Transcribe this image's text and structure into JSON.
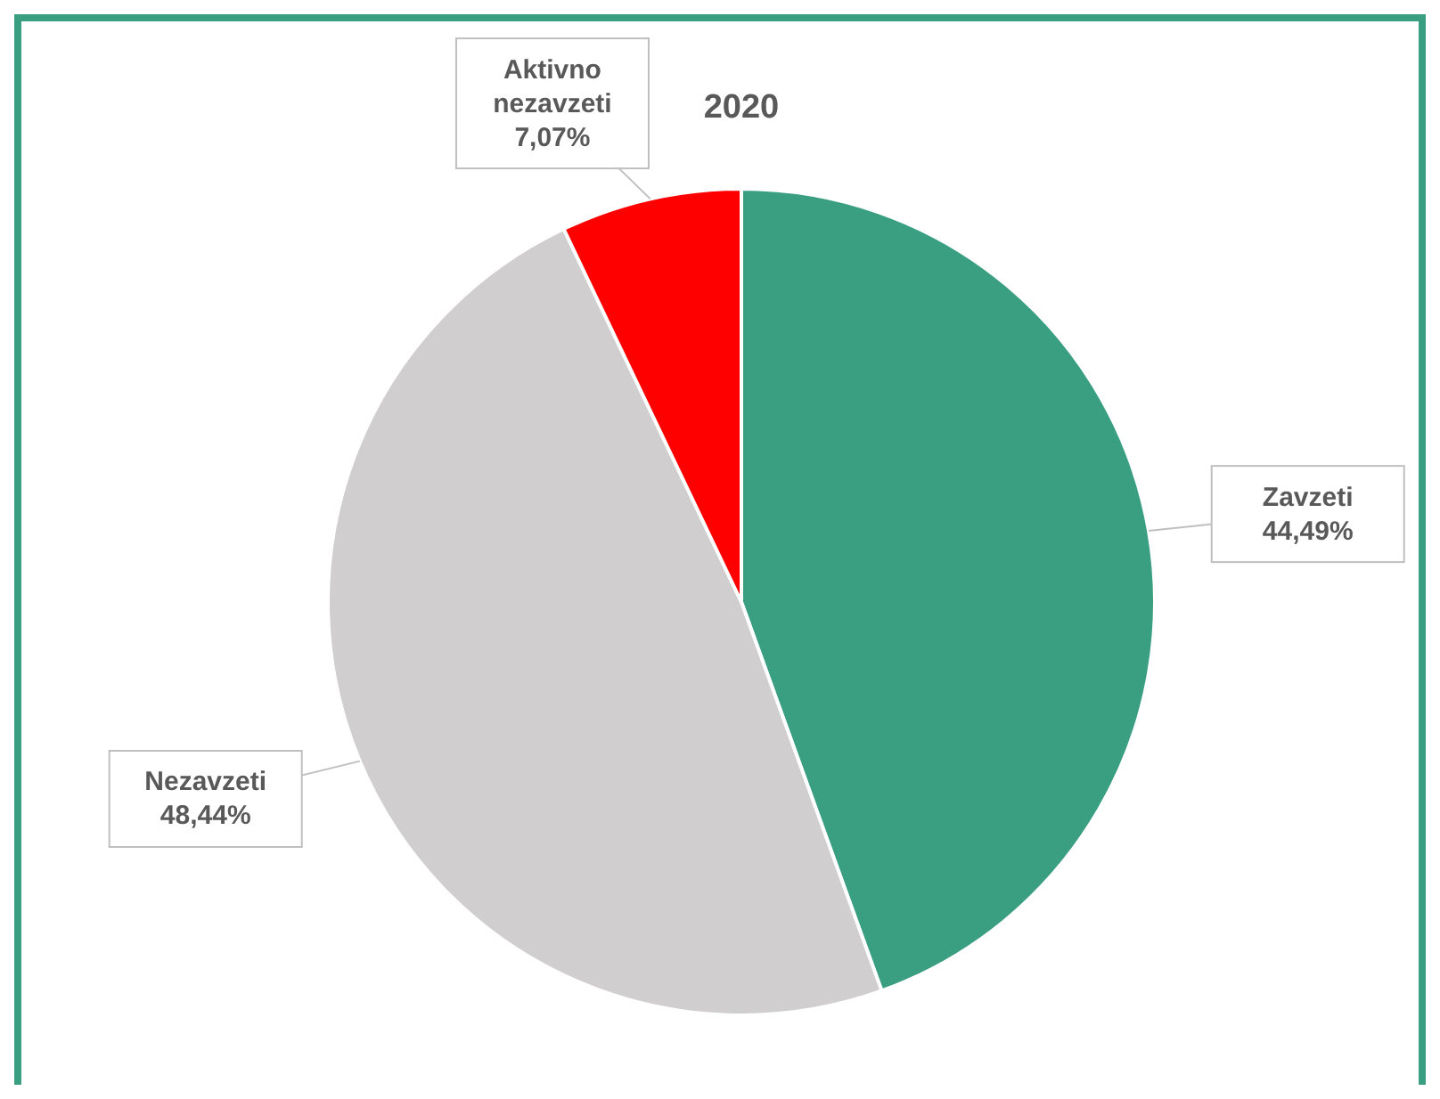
{
  "chart_data": {
    "type": "pie",
    "title": "2020",
    "categories": [
      "Zavzeti",
      "Nezavzeti",
      "Aktivno nezavzeti"
    ],
    "values": [
      44.49,
      48.44,
      7.07
    ],
    "value_labels": [
      "44,49%",
      "48,44%",
      "7,07%"
    ],
    "colors": [
      "#3a9e80",
      "#d0cece",
      "#ff0000"
    ]
  }
}
